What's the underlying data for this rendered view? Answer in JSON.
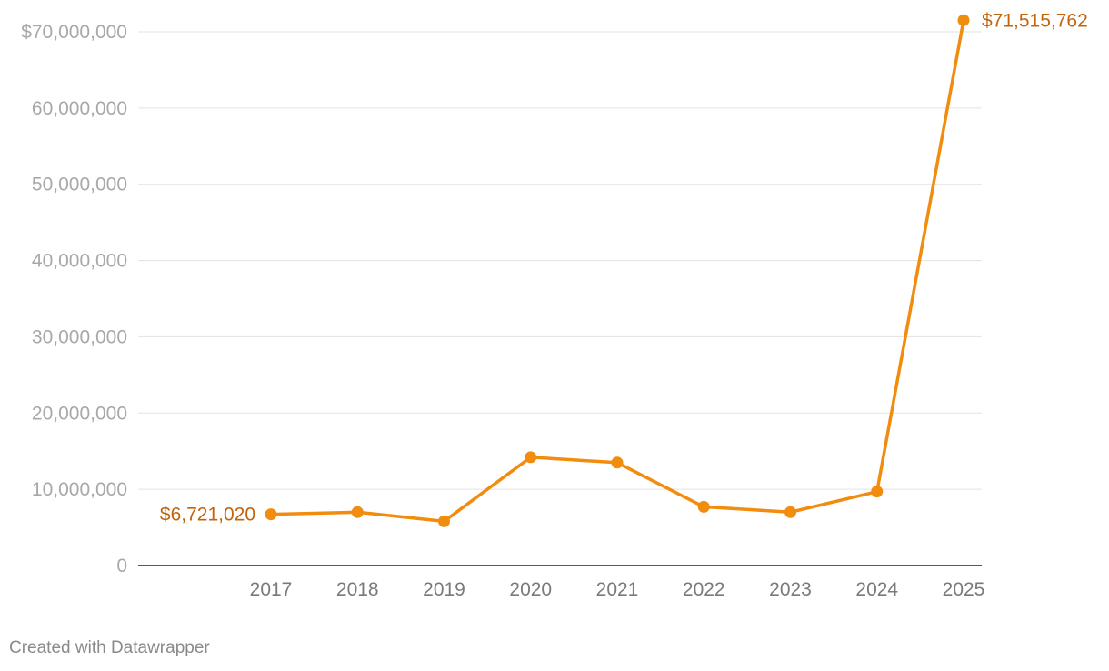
{
  "chart_data": {
    "type": "line",
    "title": "",
    "xlabel": "",
    "ylabel": "",
    "categories": [
      "2017",
      "2018",
      "2019",
      "2020",
      "2021",
      "2022",
      "2023",
      "2024",
      "2025"
    ],
    "series": [
      {
        "values": [
          6721020,
          7000000,
          5800000,
          14200000,
          13500000,
          7700000,
          7000000,
          9700000,
          71515762
        ],
        "color": "#f28c0f"
      }
    ],
    "ylim": [
      0,
      70000000
    ],
    "y_ticks": [
      {
        "value": 0,
        "label": "0"
      },
      {
        "value": 10000000,
        "label": "10,000,000"
      },
      {
        "value": 20000000,
        "label": "20,000,000"
      },
      {
        "value": 30000000,
        "label": "30,000,000"
      },
      {
        "value": 40000000,
        "label": "40,000,000"
      },
      {
        "value": 50000000,
        "label": "50,000,000"
      },
      {
        "value": 60000000,
        "label": "60,000,000"
      },
      {
        "value": 70000000,
        "label": "$70,000,000"
      }
    ],
    "annotations": [
      {
        "category": "2017",
        "label": "$6,721,020",
        "position": "left"
      },
      {
        "category": "2025",
        "label": "$71,515,762",
        "position": "right"
      }
    ],
    "label_color": "#c4640a",
    "grid": true,
    "legend": "none"
  },
  "footer": {
    "credit": "Created with Datawrapper"
  }
}
